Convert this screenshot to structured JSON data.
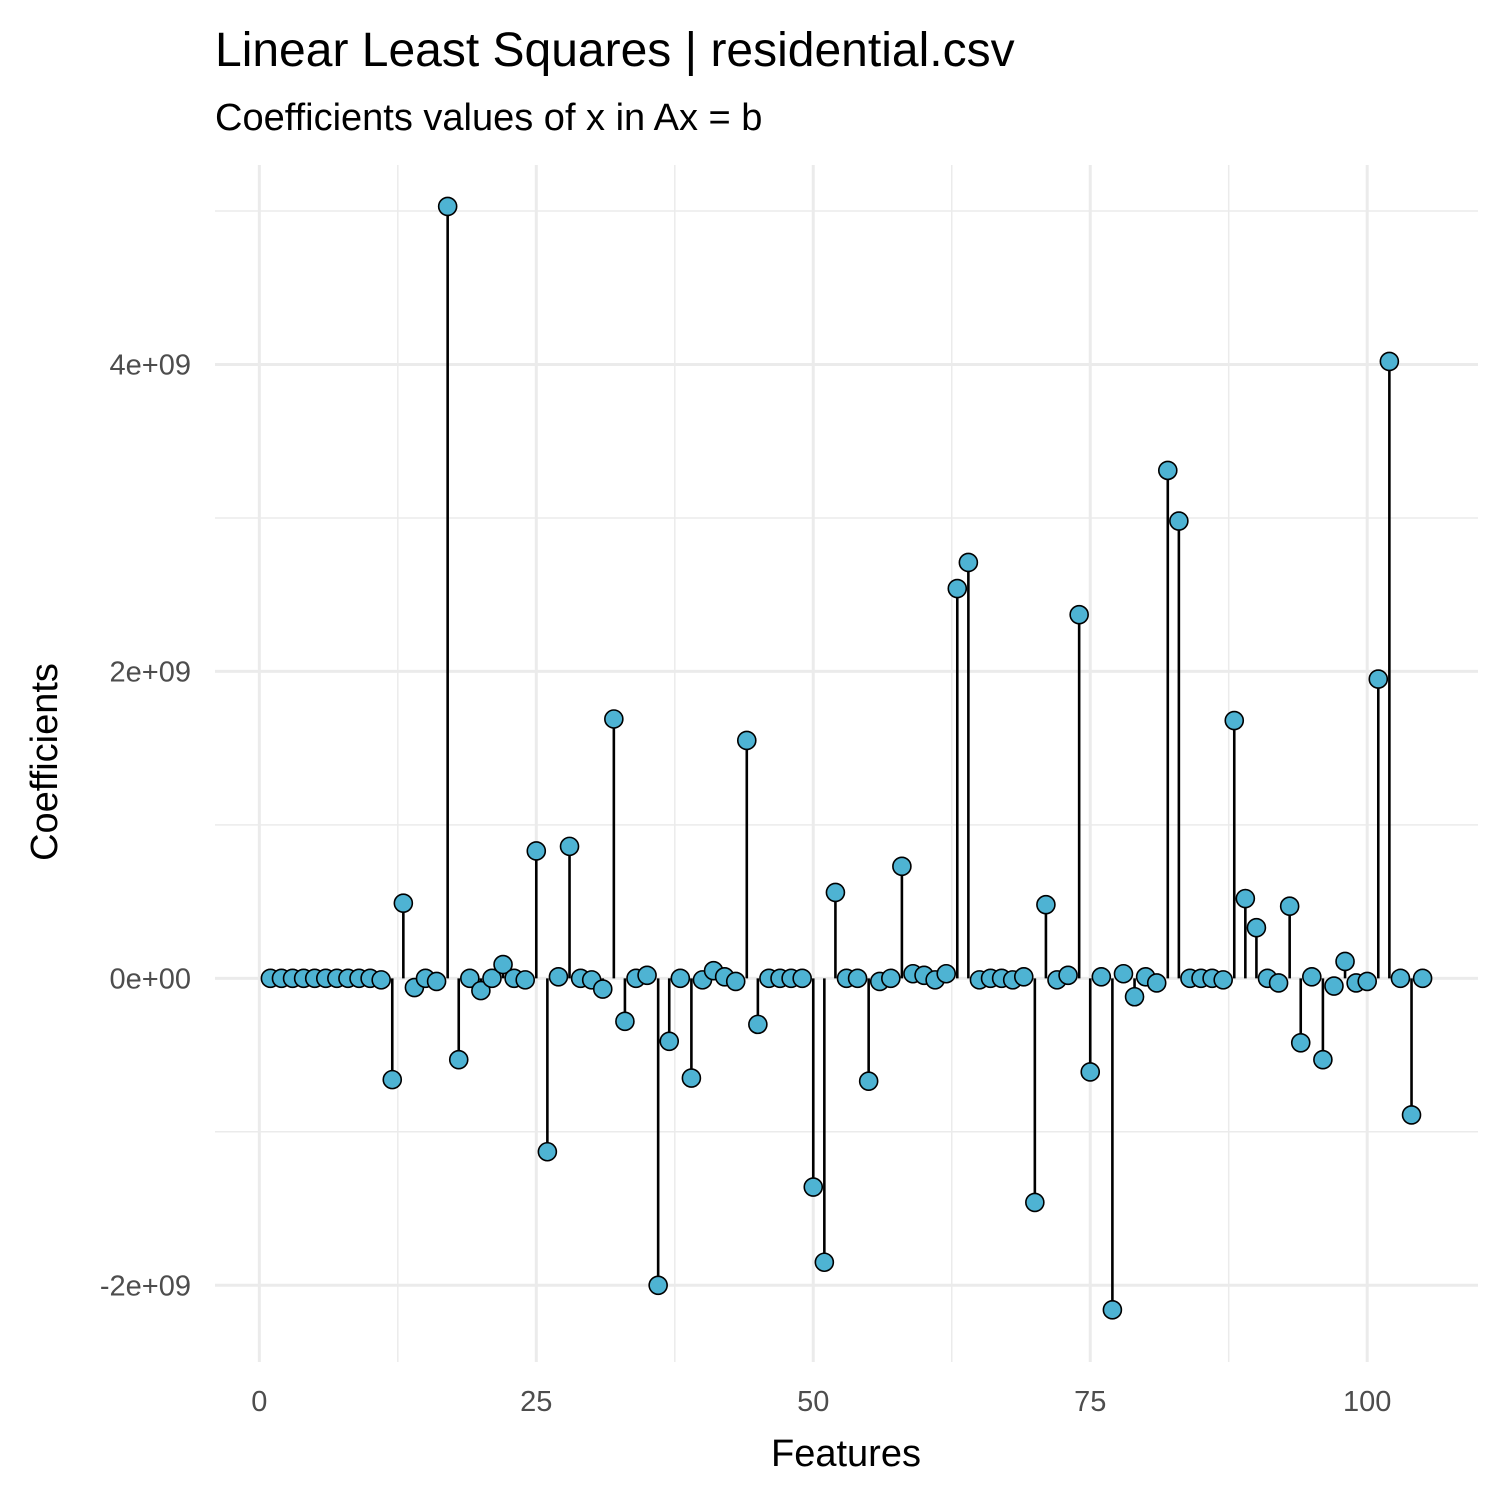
{
  "chart_data": {
    "type": "lollipop",
    "title": "Linear Least Squares | residential.csv",
    "subtitle": "Coefficients values of x in Ax = b",
    "xlabel": "Features",
    "ylabel": "Coefficients",
    "xlim": [
      -4,
      110
    ],
    "ylim": [
      -2500000000,
      5300000000
    ],
    "x_ticks": [
      0,
      25,
      50,
      75,
      100
    ],
    "x_tick_labels": [
      "0",
      "25",
      "50",
      "75",
      "100"
    ],
    "y_ticks": [
      -2000000000,
      0,
      2000000000,
      4000000000
    ],
    "y_tick_labels": [
      "-2e+09",
      "0e+00",
      "2e+09",
      "4e+09"
    ],
    "grid": true,
    "point_color": "#4eb3d3",
    "x": [
      1,
      2,
      3,
      4,
      5,
      6,
      7,
      8,
      9,
      10,
      11,
      12,
      13,
      14,
      15,
      16,
      17,
      18,
      19,
      20,
      21,
      22,
      23,
      24,
      25,
      26,
      27,
      28,
      29,
      30,
      31,
      32,
      33,
      34,
      35,
      36,
      37,
      38,
      39,
      40,
      41,
      42,
      43,
      44,
      45,
      46,
      47,
      48,
      49,
      50,
      51,
      52,
      53,
      54,
      55,
      56,
      57,
      58,
      59,
      60,
      61,
      62,
      63,
      64,
      65,
      66,
      67,
      68,
      69,
      70,
      71,
      72,
      73,
      74,
      75,
      76,
      77,
      78,
      79,
      80,
      81,
      82,
      83,
      84,
      85,
      86,
      87,
      88,
      89,
      90,
      91,
      92,
      93,
      94,
      95,
      96,
      97,
      98,
      99,
      100,
      101,
      102,
      103,
      104,
      105
    ],
    "values": [
      0,
      0,
      0,
      0,
      0,
      0,
      0,
      0,
      0,
      0,
      -10000000,
      -660000000,
      490000000,
      -60000000,
      0,
      -20000000,
      5030000000,
      -530000000,
      0,
      -80000000,
      0,
      90000000,
      0,
      -10000000,
      830000000,
      -1130000000,
      10000000,
      860000000,
      0,
      -10000000,
      -70000000,
      1690000000,
      -280000000,
      0,
      20000000,
      -2000000000,
      -410000000,
      0,
      -650000000,
      -10000000,
      50000000,
      10000000,
      -20000000,
      1550000000,
      -300000000,
      0,
      0,
      0,
      0,
      -1360000000,
      -1850000000,
      560000000,
      0,
      0,
      -670000000,
      -20000000,
      0,
      730000000,
      30000000,
      20000000,
      -10000000,
      30000000,
      2540000000,
      2710000000,
      -10000000,
      0,
      0,
      -10000000,
      10000000,
      -1460000000,
      480000000,
      -10000000,
      20000000,
      2370000000,
      -610000000,
      10000000,
      -2160000000,
      30000000,
      -120000000,
      10000000,
      -30000000,
      3310000000,
      2980000000,
      0,
      0,
      0,
      -10000000,
      1680000000,
      520000000,
      330000000,
      0,
      -30000000,
      470000000,
      -420000000,
      10000000,
      -530000000,
      -50000000,
      110000000,
      -30000000,
      -20000000,
      1950000000,
      4020000000,
      0,
      -890000000,
      0
    ]
  }
}
